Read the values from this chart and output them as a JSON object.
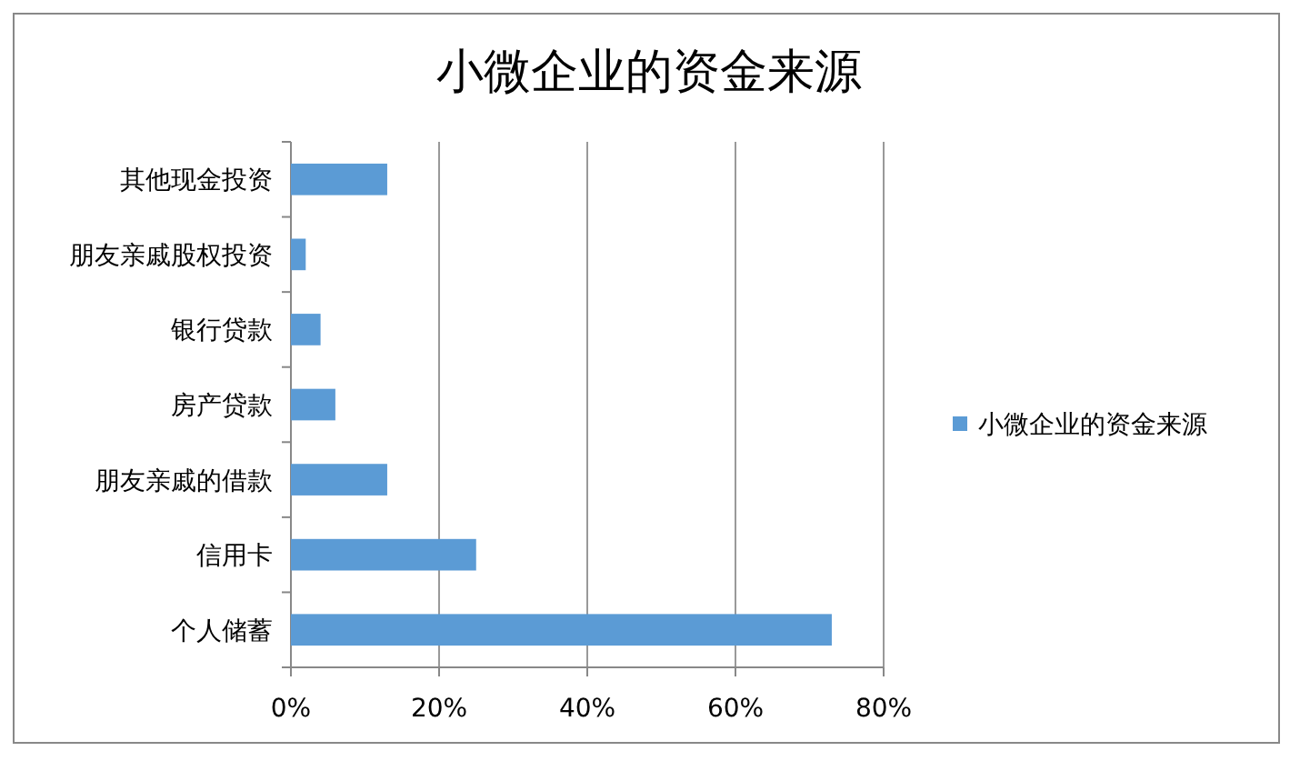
{
  "chart_data": {
    "type": "bar",
    "orientation": "horizontal",
    "title": "小微企业的资金来源",
    "categories": [
      "其他现金投资",
      "朋友亲戚股权投资",
      "银行贷款",
      "房产贷款",
      "朋友亲戚的借款",
      "信用卡",
      "个人储蓄"
    ],
    "series": [
      {
        "name": "小微企业的资金来源",
        "color": "#5b9bd5",
        "values": [
          13,
          2,
          4,
          6,
          13,
          25,
          73
        ]
      }
    ],
    "xlim": [
      0,
      80
    ],
    "xticks": [
      {
        "value": 0,
        "label": "0%"
      },
      {
        "value": 20,
        "label": "20%"
      },
      {
        "value": 40,
        "label": "40%"
      },
      {
        "value": 60,
        "label": "60%"
      },
      {
        "value": 80,
        "label": "80%"
      }
    ],
    "grid": "x",
    "legend": "right"
  }
}
